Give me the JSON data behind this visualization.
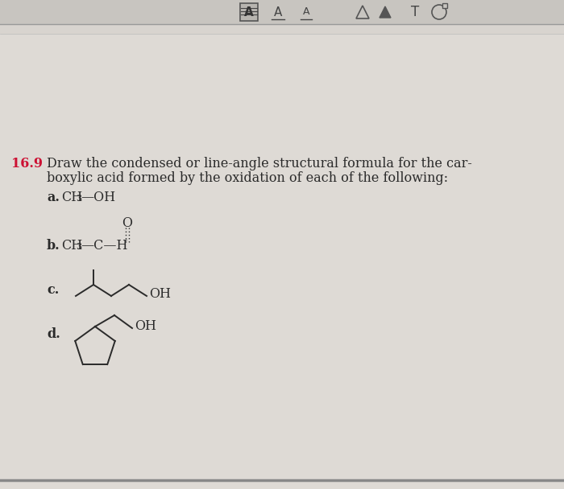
{
  "background_color": "#d8d4cf",
  "page_color": "#e8e5e0",
  "toolbar_bg": "#c8c5c0",
  "text_color": "#2a2a2a",
  "line_color": "#2a2a2a",
  "red_color": "#cc1133",
  "font_size_main": 11.5,
  "problem_number": "16.9",
  "problem_line1": "Draw the condensed or line-angle structural formula for the car-",
  "problem_line2": "boxylic acid formed by the oxidation of each of the following:",
  "label_a": "a.",
  "label_b": "b.",
  "label_c": "c.",
  "label_d": "d."
}
